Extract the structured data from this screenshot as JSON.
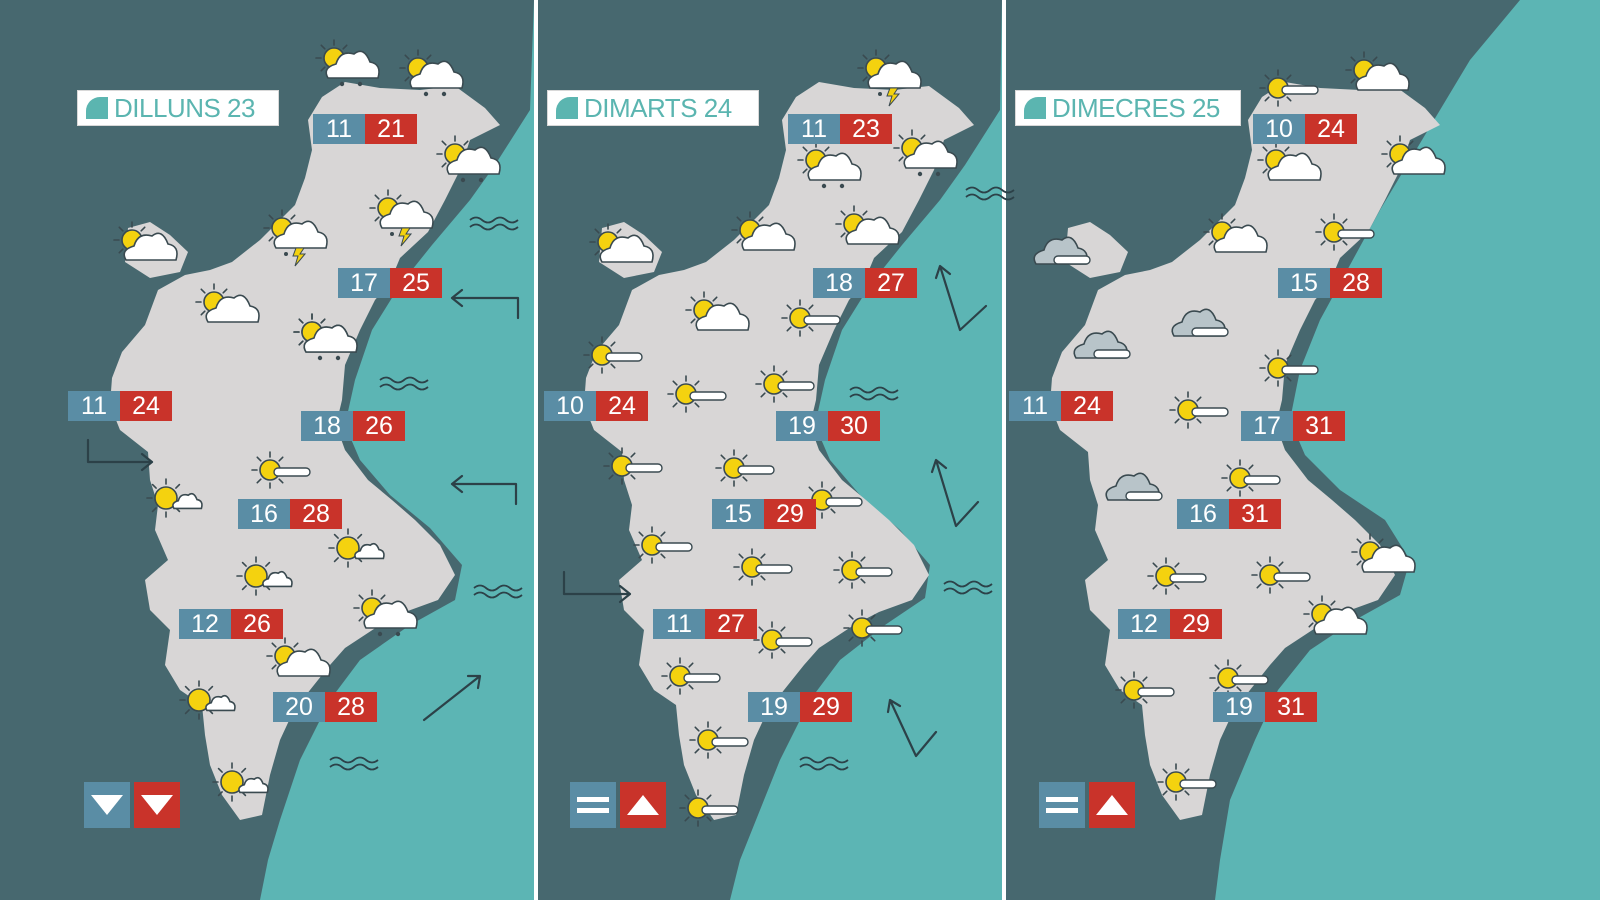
{
  "colors": {
    "sea": "#5cb5b4",
    "land": "#d8d6d6",
    "dark": "#47686f",
    "min": "#5a8da5",
    "max": "#c9332a",
    "title": "#5bb5b0"
  },
  "panels": [
    {
      "title": "DILLUNS 23",
      "trend": {
        "min": "down",
        "max": "down"
      },
      "temps": [
        {
          "min": "11",
          "max": "21"
        },
        {
          "min": "17",
          "max": "25"
        },
        {
          "min": "11",
          "max": "24"
        },
        {
          "min": "18",
          "max": "26"
        },
        {
          "min": "16",
          "max": "28"
        },
        {
          "min": "12",
          "max": "26"
        },
        {
          "min": "20",
          "max": "28"
        }
      ],
      "icons": [
        "sun-cloud-rain-icon",
        "sun-cloud-rain-icon",
        "sun-cloud-rain-icon",
        "sun-cloud-storm-icon",
        "sun-cloud-storm-icon",
        "sun-cloud-icon",
        "sun-cloud-icon",
        "sun-cloud-rain-icon",
        "sun-cloud-icon",
        "sun-haze-icon",
        "sun-small-cloud-icon",
        "sun-small-cloud-icon",
        "sun-small-cloud-icon",
        "sun-cloud-rain-icon",
        "sun-cloud-icon",
        "sun-small-cloud-icon",
        "sun-small-cloud-icon"
      ],
      "wind": [
        "wind-arrow-icon",
        "wind-arrow-icon",
        "wind-arrow-icon",
        "wind-arrow-icon"
      ],
      "waves": [
        "wave-icon",
        "wave-icon",
        "wave-icon",
        "wave-icon"
      ]
    },
    {
      "title": "DIMARTS 24",
      "trend": {
        "min": "equal",
        "max": "up"
      },
      "temps": [
        {
          "min": "11",
          "max": "23"
        },
        {
          "min": "18",
          "max": "27"
        },
        {
          "min": "10",
          "max": "24"
        },
        {
          "min": "19",
          "max": "30"
        },
        {
          "min": "15",
          "max": "29"
        },
        {
          "min": "11",
          "max": "27"
        },
        {
          "min": "19",
          "max": "29"
        }
      ],
      "icons": [
        "sun-cloud-storm-icon",
        "sun-cloud-rain-icon",
        "sun-cloud-rain-icon",
        "sun-cloud-icon",
        "sun-cloud-icon",
        "sun-cloud-icon",
        "sun-cloud-icon",
        "sun-haze-icon",
        "sun-haze-icon",
        "sun-haze-icon",
        "sun-haze-icon",
        "sun-haze-icon",
        "sun-haze-icon",
        "sun-haze-icon",
        "sun-haze-icon",
        "sun-haze-icon",
        "sun-haze-icon",
        "sun-haze-icon",
        "sun-haze-icon",
        "sun-haze-icon",
        "sun-haze-icon",
        "sun-haze-icon"
      ],
      "wind": [
        "wind-arrow-icon",
        "wind-arrow-icon",
        "wind-arrow-icon",
        "wind-arrow-icon"
      ],
      "waves": [
        "wave-icon",
        "wave-icon",
        "wave-icon",
        "wave-icon"
      ]
    },
    {
      "title": "DIMECRES 25",
      "trend": {
        "min": "equal",
        "max": "up"
      },
      "temps": [
        {
          "min": "10",
          "max": "24"
        },
        {
          "min": "15",
          "max": "28"
        },
        {
          "min": "11",
          "max": "24"
        },
        {
          "min": "17",
          "max": "31"
        },
        {
          "min": "16",
          "max": "31"
        },
        {
          "min": "12",
          "max": "29"
        },
        {
          "min": "19",
          "max": "31"
        }
      ],
      "icons": [
        "sun-haze-icon",
        "sun-cloud-icon",
        "sun-cloud-icon",
        "sun-cloud-icon",
        "sun-cloud-icon",
        "sun-haze-icon",
        "cloud-haze-icon",
        "cloud-haze-icon",
        "cloud-haze-icon",
        "sun-haze-icon",
        "sun-haze-icon",
        "sun-haze-icon",
        "cloud-haze-icon",
        "sun-haze-icon",
        "sun-haze-icon",
        "sun-cloud-icon",
        "sun-cloud-icon",
        "sun-haze-icon",
        "sun-haze-icon",
        "sun-haze-icon"
      ],
      "wind": [],
      "waves": []
    }
  ]
}
